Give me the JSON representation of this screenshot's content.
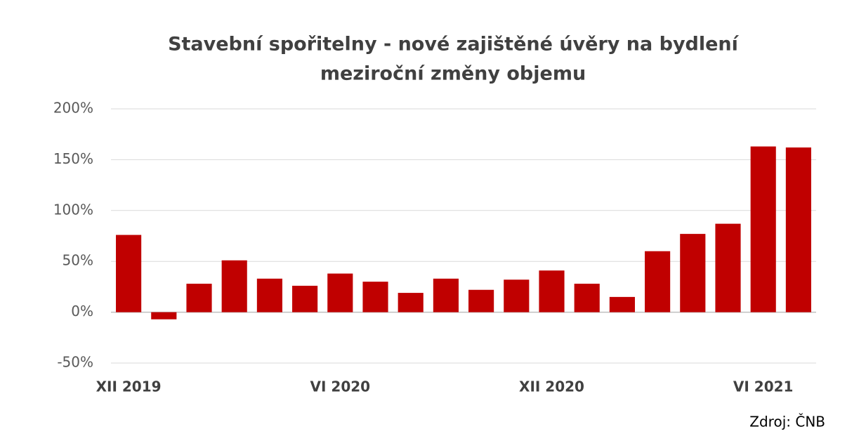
{
  "chart_data": {
    "type": "bar",
    "title": "Stavební spořitelny - nové zajištěné úvěry na bydlení",
    "subtitle": "meziroční změny objemu",
    "categories": [
      "XII 2019",
      null,
      null,
      null,
      null,
      null,
      "VI 2020",
      null,
      null,
      null,
      null,
      null,
      "XII 2020",
      null,
      null,
      null,
      null,
      null,
      "VI 2021",
      null
    ],
    "values": [
      76,
      -7,
      28,
      51,
      33,
      26,
      38,
      30,
      19,
      33,
      22,
      32,
      41,
      28,
      15,
      60,
      77,
      87,
      163,
      162
    ],
    "color": "#c00000",
    "ylim": [
      -50,
      200
    ],
    "yticks": [
      {
        "value": -50,
        "label": "-50%"
      },
      {
        "value": 0,
        "label": "0%"
      },
      {
        "value": 50,
        "label": "50%"
      },
      {
        "value": 100,
        "label": "100%"
      },
      {
        "value": 150,
        "label": "150%"
      },
      {
        "value": 200,
        "label": "200%"
      }
    ],
    "grid": true,
    "source": "Zdroj: ČNB"
  }
}
